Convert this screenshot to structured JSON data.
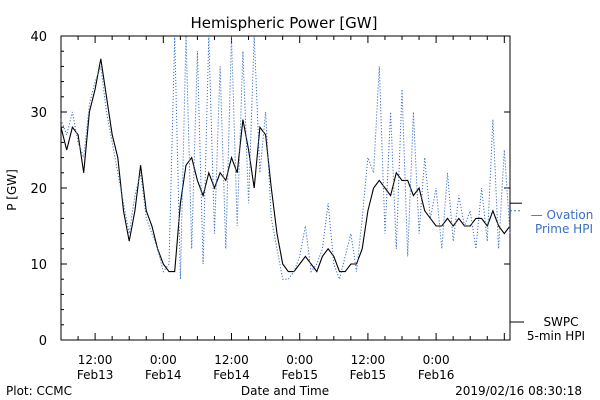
{
  "chart_data": {
    "type": "line",
    "title": "Hemispheric Power [GW]",
    "ylabel": "P [GW]",
    "xlabel": "Date and Time",
    "ylim": [
      0,
      40
    ],
    "yticks": [
      0,
      10,
      20,
      30,
      40
    ],
    "xlim": [
      "2019-02-13 06:00",
      "2019-02-16 13:00"
    ],
    "xticks": [
      {
        "t": "2019-02-13 12:00",
        "line1": "12:00",
        "line2": "Feb13"
      },
      {
        "t": "2019-02-14 00:00",
        "line1": "0:00",
        "line2": "Feb14"
      },
      {
        "t": "2019-02-14 12:00",
        "line1": "12:00",
        "line2": "Feb14"
      },
      {
        "t": "2019-02-15 00:00",
        "line1": "0:00",
        "line2": "Feb15"
      },
      {
        "t": "2019-02-15 12:00",
        "line1": "12:00",
        "line2": "Feb15"
      },
      {
        "t": "2019-02-16 00:00",
        "line1": "0:00",
        "line2": "Feb16"
      }
    ],
    "series": [
      {
        "name_line1": "SWPC",
        "name_line2": "5-min HPI",
        "color": "#000000",
        "style": "solid",
        "points": [
          [
            "2019-02-13 06:00",
            28
          ],
          [
            "2019-02-13 07:00",
            25
          ],
          [
            "2019-02-13 08:00",
            28
          ],
          [
            "2019-02-13 09:00",
            27
          ],
          [
            "2019-02-13 10:00",
            22
          ],
          [
            "2019-02-13 11:00",
            30
          ],
          [
            "2019-02-13 12:00",
            33
          ],
          [
            "2019-02-13 13:00",
            37
          ],
          [
            "2019-02-13 14:00",
            32
          ],
          [
            "2019-02-13 15:00",
            27
          ],
          [
            "2019-02-13 16:00",
            24
          ],
          [
            "2019-02-13 17:00",
            17
          ],
          [
            "2019-02-13 18:00",
            13
          ],
          [
            "2019-02-13 19:00",
            17
          ],
          [
            "2019-02-13 20:00",
            23
          ],
          [
            "2019-02-13 21:00",
            17
          ],
          [
            "2019-02-13 22:00",
            15
          ],
          [
            "2019-02-13 23:00",
            12
          ],
          [
            "2019-02-14 00:00",
            10
          ],
          [
            "2019-02-14 01:00",
            9
          ],
          [
            "2019-02-14 02:00",
            9
          ],
          [
            "2019-02-14 03:00",
            18
          ],
          [
            "2019-02-14 04:00",
            23
          ],
          [
            "2019-02-14 05:00",
            24
          ],
          [
            "2019-02-14 06:00",
            21
          ],
          [
            "2019-02-14 07:00",
            19
          ],
          [
            "2019-02-14 08:00",
            22
          ],
          [
            "2019-02-14 09:00",
            20
          ],
          [
            "2019-02-14 10:00",
            22
          ],
          [
            "2019-02-14 11:00",
            21
          ],
          [
            "2019-02-14 12:00",
            24
          ],
          [
            "2019-02-14 13:00",
            22
          ],
          [
            "2019-02-14 14:00",
            29
          ],
          [
            "2019-02-14 15:00",
            25
          ],
          [
            "2019-02-14 16:00",
            20
          ],
          [
            "2019-02-14 17:00",
            28
          ],
          [
            "2019-02-14 18:00",
            27
          ],
          [
            "2019-02-14 19:00",
            20
          ],
          [
            "2019-02-14 20:00",
            14
          ],
          [
            "2019-02-14 21:00",
            10
          ],
          [
            "2019-02-14 22:00",
            9
          ],
          [
            "2019-02-14 23:00",
            9
          ],
          [
            "2019-02-15 00:00",
            10
          ],
          [
            "2019-02-15 01:00",
            11
          ],
          [
            "2019-02-15 02:00",
            10
          ],
          [
            "2019-02-15 03:00",
            9
          ],
          [
            "2019-02-15 04:00",
            11
          ],
          [
            "2019-02-15 05:00",
            12
          ],
          [
            "2019-02-15 06:00",
            11
          ],
          [
            "2019-02-15 07:00",
            9
          ],
          [
            "2019-02-15 08:00",
            9
          ],
          [
            "2019-02-15 09:00",
            10
          ],
          [
            "2019-02-15 10:00",
            10
          ],
          [
            "2019-02-15 11:00",
            12
          ],
          [
            "2019-02-15 12:00",
            17
          ],
          [
            "2019-02-15 13:00",
            20
          ],
          [
            "2019-02-15 14:00",
            21
          ],
          [
            "2019-02-15 15:00",
            20
          ],
          [
            "2019-02-15 16:00",
            19
          ],
          [
            "2019-02-15 17:00",
            22
          ],
          [
            "2019-02-15 18:00",
            21
          ],
          [
            "2019-02-15 19:00",
            21
          ],
          [
            "2019-02-15 20:00",
            19
          ],
          [
            "2019-02-15 21:00",
            20
          ],
          [
            "2019-02-15 22:00",
            17
          ],
          [
            "2019-02-15 23:00",
            16
          ],
          [
            "2019-02-16 00:00",
            15
          ],
          [
            "2019-02-16 01:00",
            15
          ],
          [
            "2019-02-16 02:00",
            16
          ],
          [
            "2019-02-16 03:00",
            15
          ],
          [
            "2019-02-16 04:00",
            16
          ],
          [
            "2019-02-16 05:00",
            15
          ],
          [
            "2019-02-16 06:00",
            15
          ],
          [
            "2019-02-16 07:00",
            16
          ],
          [
            "2019-02-16 08:00",
            16
          ],
          [
            "2019-02-16 09:00",
            15
          ],
          [
            "2019-02-16 10:00",
            17
          ],
          [
            "2019-02-16 11:00",
            15
          ],
          [
            "2019-02-16 12:00",
            14
          ],
          [
            "2019-02-16 13:00",
            15
          ]
        ]
      },
      {
        "name_line1": "— Ovation",
        "name_line2": "Prime HPI",
        "color": "#3a6fc4",
        "style": "dotted",
        "points": [
          [
            "2019-02-13 06:00",
            29
          ],
          [
            "2019-02-13 07:00",
            27
          ],
          [
            "2019-02-13 08:00",
            30
          ],
          [
            "2019-02-13 09:00",
            26
          ],
          [
            "2019-02-13 10:00",
            24
          ],
          [
            "2019-02-13 11:00",
            31
          ],
          [
            "2019-02-13 12:00",
            34
          ],
          [
            "2019-02-13 13:00",
            36
          ],
          [
            "2019-02-13 14:00",
            30
          ],
          [
            "2019-02-13 15:00",
            26
          ],
          [
            "2019-02-13 16:00",
            22
          ],
          [
            "2019-02-13 17:00",
            18
          ],
          [
            "2019-02-13 18:00",
            14
          ],
          [
            "2019-02-13 19:00",
            19
          ],
          [
            "2019-02-13 20:00",
            22
          ],
          [
            "2019-02-13 21:00",
            16
          ],
          [
            "2019-02-13 22:00",
            14
          ],
          [
            "2019-02-13 23:00",
            12
          ],
          [
            "2019-02-14 00:00",
            9
          ],
          [
            "2019-02-14 01:00",
            10
          ],
          [
            "2019-02-14 02:00",
            40
          ],
          [
            "2019-02-14 03:00",
            8
          ],
          [
            "2019-02-14 04:00",
            40
          ],
          [
            "2019-02-14 05:00",
            12
          ],
          [
            "2019-02-14 06:00",
            38
          ],
          [
            "2019-02-14 07:00",
            10
          ],
          [
            "2019-02-14 08:00",
            40
          ],
          [
            "2019-02-14 09:00",
            14
          ],
          [
            "2019-02-14 10:00",
            36
          ],
          [
            "2019-02-14 11:00",
            12
          ],
          [
            "2019-02-14 12:00",
            40
          ],
          [
            "2019-02-14 13:00",
            15
          ],
          [
            "2019-02-14 14:00",
            38
          ],
          [
            "2019-02-14 15:00",
            18
          ],
          [
            "2019-02-14 16:00",
            40
          ],
          [
            "2019-02-14 17:00",
            22
          ],
          [
            "2019-02-14 18:00",
            30
          ],
          [
            "2019-02-14 19:00",
            16
          ],
          [
            "2019-02-14 20:00",
            12
          ],
          [
            "2019-02-14 21:00",
            8
          ],
          [
            "2019-02-14 22:00",
            8
          ],
          [
            "2019-02-14 23:00",
            9
          ],
          [
            "2019-02-15 00:00",
            11
          ],
          [
            "2019-02-15 01:00",
            15
          ],
          [
            "2019-02-15 02:00",
            9
          ],
          [
            "2019-02-15 03:00",
            10
          ],
          [
            "2019-02-15 04:00",
            12
          ],
          [
            "2019-02-15 05:00",
            18
          ],
          [
            "2019-02-15 06:00",
            10
          ],
          [
            "2019-02-15 07:00",
            8
          ],
          [
            "2019-02-15 08:00",
            11
          ],
          [
            "2019-02-15 09:00",
            14
          ],
          [
            "2019-02-15 10:00",
            9
          ],
          [
            "2019-02-15 11:00",
            16
          ],
          [
            "2019-02-15 12:00",
            24
          ],
          [
            "2019-02-15 13:00",
            22
          ],
          [
            "2019-02-15 14:00",
            36
          ],
          [
            "2019-02-15 15:00",
            14
          ],
          [
            "2019-02-15 16:00",
            30
          ],
          [
            "2019-02-15 17:00",
            12
          ],
          [
            "2019-02-15 18:00",
            33
          ],
          [
            "2019-02-15 19:00",
            11
          ],
          [
            "2019-02-15 20:00",
            30
          ],
          [
            "2019-02-15 21:00",
            14
          ],
          [
            "2019-02-15 22:00",
            24
          ],
          [
            "2019-02-15 23:00",
            16
          ],
          [
            "2019-02-16 00:00",
            20
          ],
          [
            "2019-02-16 01:00",
            12
          ],
          [
            "2019-02-16 02:00",
            22
          ],
          [
            "2019-02-16 03:00",
            13
          ],
          [
            "2019-02-16 04:00",
            19
          ],
          [
            "2019-02-16 05:00",
            15
          ],
          [
            "2019-02-16 06:00",
            17
          ],
          [
            "2019-02-16 07:00",
            12
          ],
          [
            "2019-02-16 08:00",
            20
          ],
          [
            "2019-02-16 09:00",
            13
          ],
          [
            "2019-02-16 10:00",
            29
          ],
          [
            "2019-02-16 11:00",
            12
          ],
          [
            "2019-02-16 12:00",
            25
          ],
          [
            "2019-02-16 13:00",
            14
          ]
        ]
      }
    ]
  },
  "footer": {
    "plot_credit": "Plot: CCMC",
    "timestamp": "2019/02/16 08:30:18"
  }
}
